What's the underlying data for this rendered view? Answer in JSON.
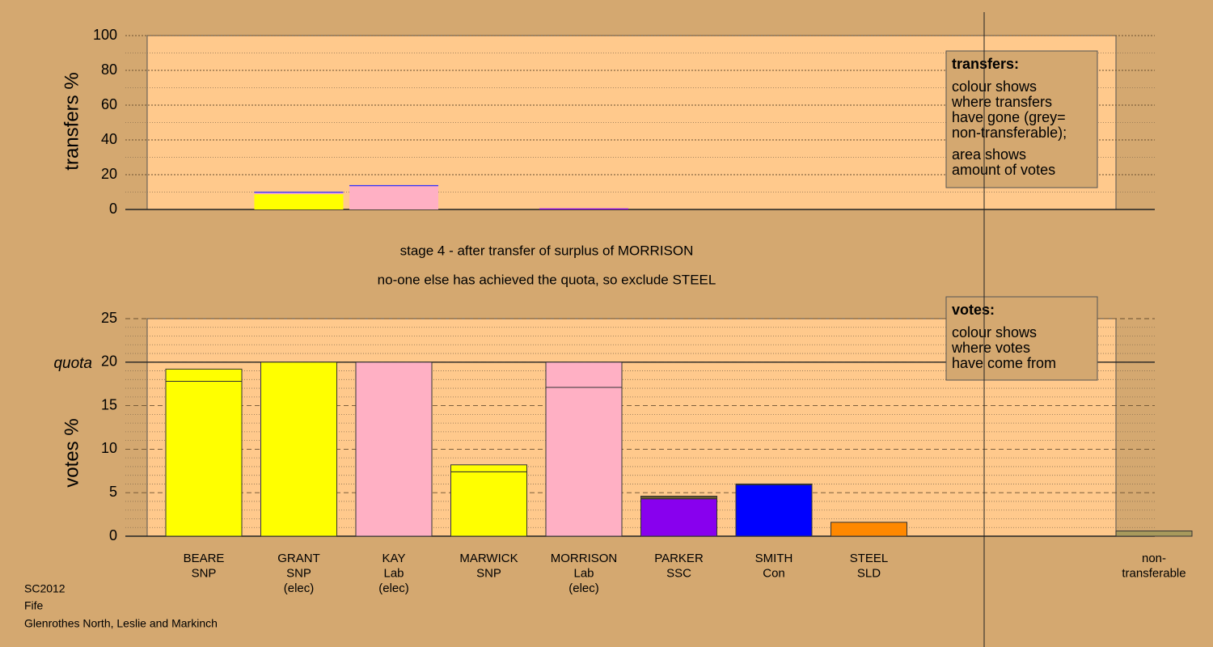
{
  "chart_data": [
    {
      "type": "bar",
      "stacked": true,
      "ylabel": "transfers %",
      "ylim": [
        0,
        100
      ],
      "yticks": [
        0,
        20,
        40,
        60,
        80,
        100
      ],
      "minor_yticks": [
        10,
        30,
        50,
        70,
        90
      ],
      "categories": [
        null,
        null,
        null,
        null,
        null,
        null,
        null,
        null,
        null,
        null,
        null
      ],
      "series": [
        {
          "colors": [
            null,
            "#ffff00",
            null,
            null,
            null,
            null,
            null,
            null,
            null,
            null,
            null
          ],
          "values": [
            null,
            8.8,
            null,
            null,
            null,
            null,
            null,
            null,
            null,
            null,
            null
          ]
        },
        {
          "colors": [
            null,
            "#ffb0c4",
            "#ffb0c4",
            null,
            null,
            null,
            null,
            null,
            null,
            null,
            null
          ],
          "values": [
            null,
            0.8,
            13.4,
            null,
            null,
            null,
            null,
            null,
            null,
            null,
            null
          ]
        },
        {
          "colors": [
            null,
            null,
            null,
            null,
            "#8800ee",
            null,
            null,
            null,
            null,
            null,
            null
          ],
          "values": [
            null,
            null,
            null,
            null,
            0.6,
            null,
            null,
            null,
            null,
            null,
            null
          ]
        },
        {
          "colors": [
            null,
            "#3030ff",
            "#3030ff",
            null,
            "#3030ff",
            null,
            null,
            null,
            null,
            null,
            null
          ],
          "values": [
            null,
            0.6,
            0.6,
            null,
            null,
            null,
            null,
            null,
            null,
            null,
            null
          ]
        }
      ],
      "note": {
        "title": "transfers:",
        "paragraphs": [
          [
            "colour shows",
            "where transfers",
            "have gone (grey=",
            "non-transferable);"
          ],
          [
            "area shows",
            "amount of votes"
          ]
        ]
      }
    },
    {
      "type": "bar",
      "stacked": true,
      "ylabel": "votes %",
      "ylim": [
        0,
        25
      ],
      "yticks": [
        0,
        5,
        10,
        15,
        20,
        25
      ],
      "minor_yticks": [
        1,
        2,
        3,
        4,
        6,
        7,
        8,
        9,
        11,
        12,
        13,
        14,
        16,
        17,
        18,
        19,
        21,
        22,
        23,
        24
      ],
      "quota": {
        "label": "quota",
        "value": 20
      },
      "categories": [
        [
          "BEARE",
          "SNP"
        ],
        [
          "GRANT",
          "SNP",
          "(elec)"
        ],
        [
          "KAY",
          "Lab",
          "(elec)"
        ],
        [
          "MARWICK",
          "SNP"
        ],
        [
          "MORRISON",
          "Lab",
          "(elec)"
        ],
        [
          "PARKER",
          "SSC"
        ],
        [
          "SMITH",
          "Con"
        ],
        [
          "STEEL",
          "SLD"
        ],
        null,
        null,
        [
          "non-",
          "transferable"
        ]
      ],
      "series": [
        {
          "colors": [
            "#ffff00",
            "#ffff00",
            "#ffb0c4",
            "#ffff00",
            "#ffb0c4",
            "#8800ee",
            "#0000ff",
            "#ff8800",
            null,
            null,
            "#a89a5c"
          ],
          "values": [
            17.8,
            20,
            20,
            7.4,
            17.1,
            4.3,
            5.9,
            1.6,
            null,
            null,
            0.6
          ]
        },
        {
          "colors": [
            "#ffff00",
            null,
            null,
            "#ffff00",
            "#ffb0c4",
            "#6a5a2a",
            "#0000ff",
            null,
            null,
            null,
            null
          ],
          "values": [
            1.4,
            null,
            null,
            0.8,
            2.9,
            0.3,
            0.1,
            null,
            null,
            null,
            null
          ]
        }
      ],
      "note": {
        "title": "votes:",
        "paragraphs": [
          [
            "colour shows",
            "where votes",
            "have come from"
          ]
        ]
      }
    }
  ],
  "stage": {
    "title": "stage 4 - after transfer of surplus of MORRISON",
    "subtitle": "no-one else has achieved the quota, so exclude STEEL"
  },
  "footer": [
    "SC2012",
    "Fife",
    "Glenrothes North, Leslie and Markinch"
  ]
}
